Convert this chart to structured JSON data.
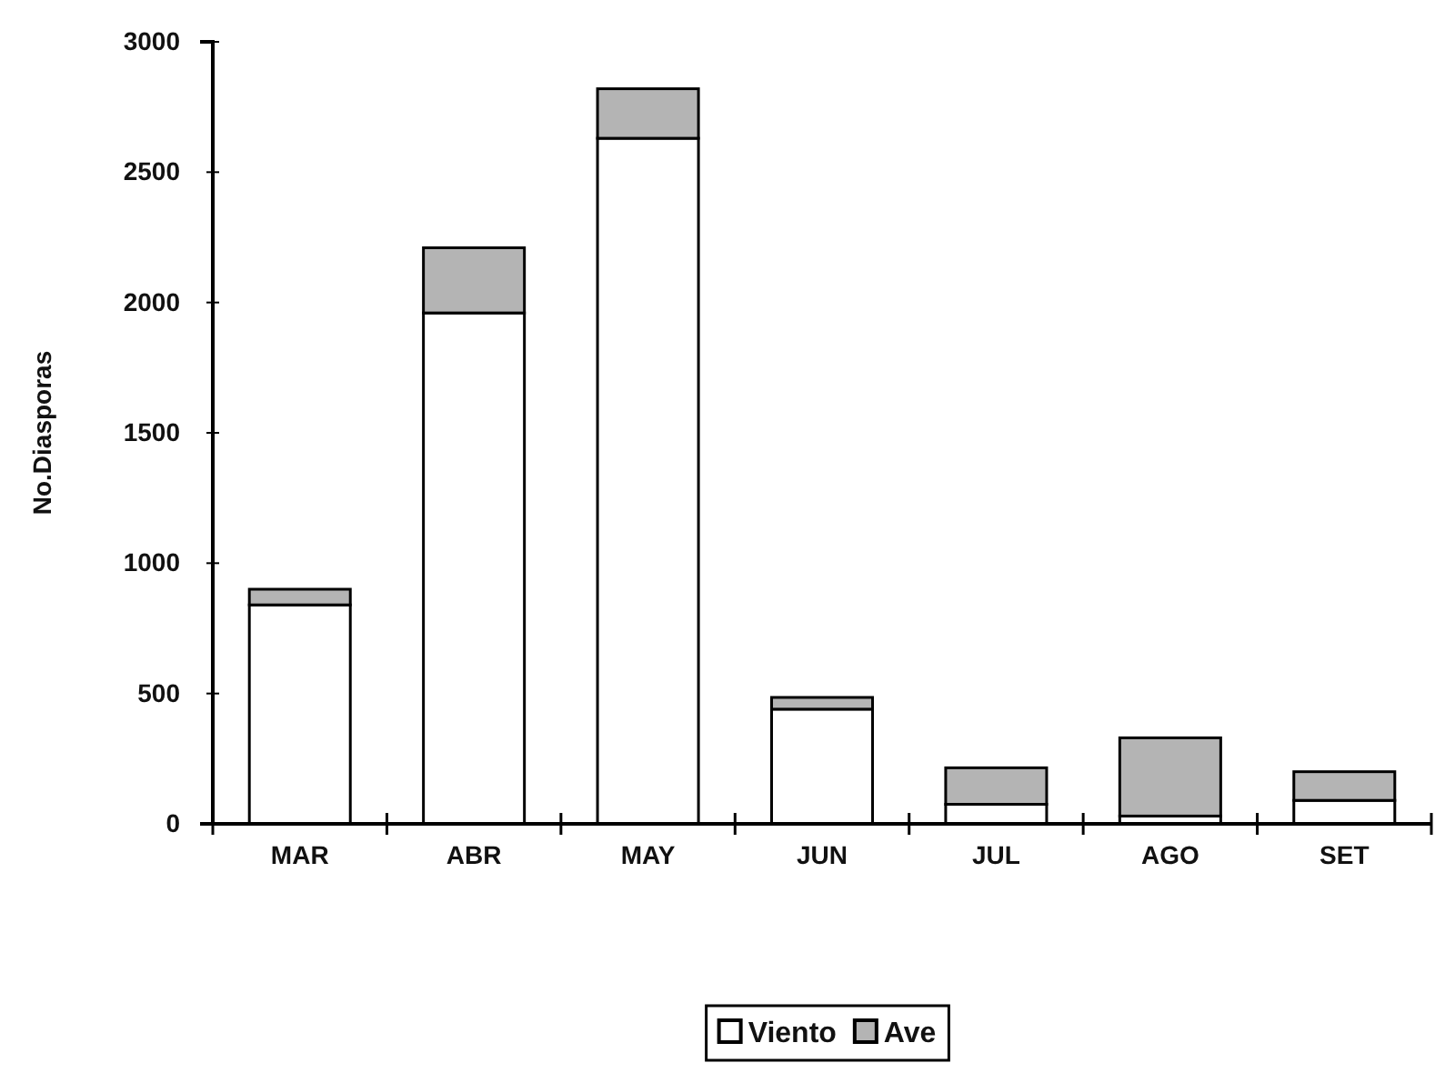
{
  "chart_data": {
    "type": "bar",
    "stacked": true,
    "ylabel": "No.Diasporas",
    "categories": [
      "MAR",
      "ABR",
      "MAY",
      "JUN",
      "JUL",
      "AGO",
      "SET"
    ],
    "series": [
      {
        "name": "Viento",
        "color": "#ffffff",
        "values": [
          840,
          1960,
          2630,
          440,
          75,
          30,
          90
        ]
      },
      {
        "name": "Ave",
        "color": "#b4b4b4",
        "values": [
          60,
          250,
          190,
          45,
          140,
          300,
          110
        ]
      }
    ],
    "ylim": [
      0,
      3000
    ],
    "yticks": [
      0,
      500,
      1000,
      1500,
      2000,
      2500,
      3000
    ],
    "grid": false,
    "legend": "bottom"
  }
}
